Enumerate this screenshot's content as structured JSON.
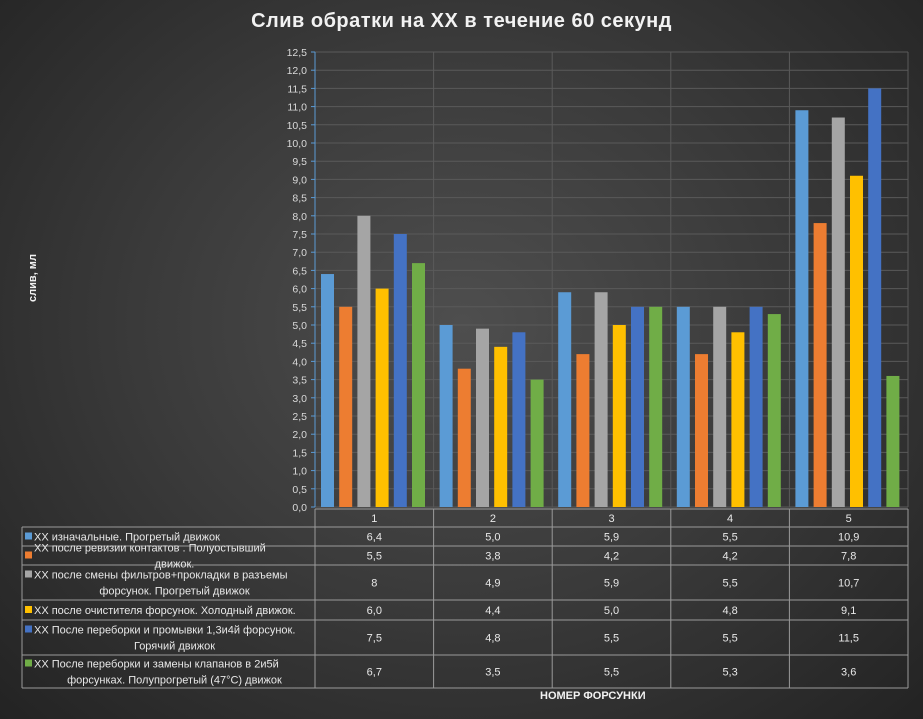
{
  "chart_data": {
    "type": "bar",
    "title": "Слив обратки  на ХХ в течение  60 секунд",
    "xlabel": "НОМЕР ФОРСУНКИ",
    "ylabel": "слив, мл",
    "ylim": [
      0,
      12.5
    ],
    "ytick_step": 0.5,
    "grid": true,
    "legend": "data-table",
    "categories": [
      "1",
      "2",
      "3",
      "4",
      "5"
    ],
    "series": [
      {
        "name": "ХХ изначальные. Прогретый движок",
        "color": "#5b9bd5",
        "values": [
          6.4,
          5.0,
          5.9,
          5.5,
          10.9
        ],
        "labels": [
          "6,4",
          "5,0",
          "5,9",
          "5,5",
          "10,9"
        ]
      },
      {
        "name": "ХХ после ревизии контактов . Полуостывший движок.",
        "color": "#ed7d31",
        "values": [
          5.5,
          3.8,
          4.2,
          4.2,
          7.8
        ],
        "labels": [
          "5,5",
          "3,8",
          "4,2",
          "4,2",
          "7,8"
        ]
      },
      {
        "name": "ХХ после смены фильтров+прокладки в разъемы форсунок. Прогретый движок",
        "color": "#a5a5a5",
        "values": [
          8,
          4.9,
          5.9,
          5.5,
          10.7
        ],
        "labels": [
          "8",
          "4,9",
          "5,9",
          "5,5",
          "10,7"
        ]
      },
      {
        "name": "ХХ после очистителя форсунок. Холодный движок.",
        "color": "#ffc000",
        "values": [
          6.0,
          4.4,
          5.0,
          4.8,
          9.1
        ],
        "labels": [
          "6,0",
          "4,4",
          "5,0",
          "4,8",
          "9,1"
        ]
      },
      {
        "name": "ХХ После переборки и промывки 1,3и4й форсунок. Горячий движок",
        "color": "#4472c4",
        "values": [
          7.5,
          4.8,
          5.5,
          5.5,
          11.5
        ],
        "labels": [
          "7,5",
          "4,8",
          "5,5",
          "5,5",
          "11,5"
        ]
      },
      {
        "name": "ХХ После переборки и замены клапанов в 2и5й форсунках. Полупрогретый (47°C) движок",
        "color": "#70ad47",
        "values": [
          6.7,
          3.5,
          5.5,
          5.3,
          3.6
        ],
        "labels": [
          "6,7",
          "3,5",
          "5,5",
          "5,3",
          "3,6"
        ]
      }
    ]
  }
}
